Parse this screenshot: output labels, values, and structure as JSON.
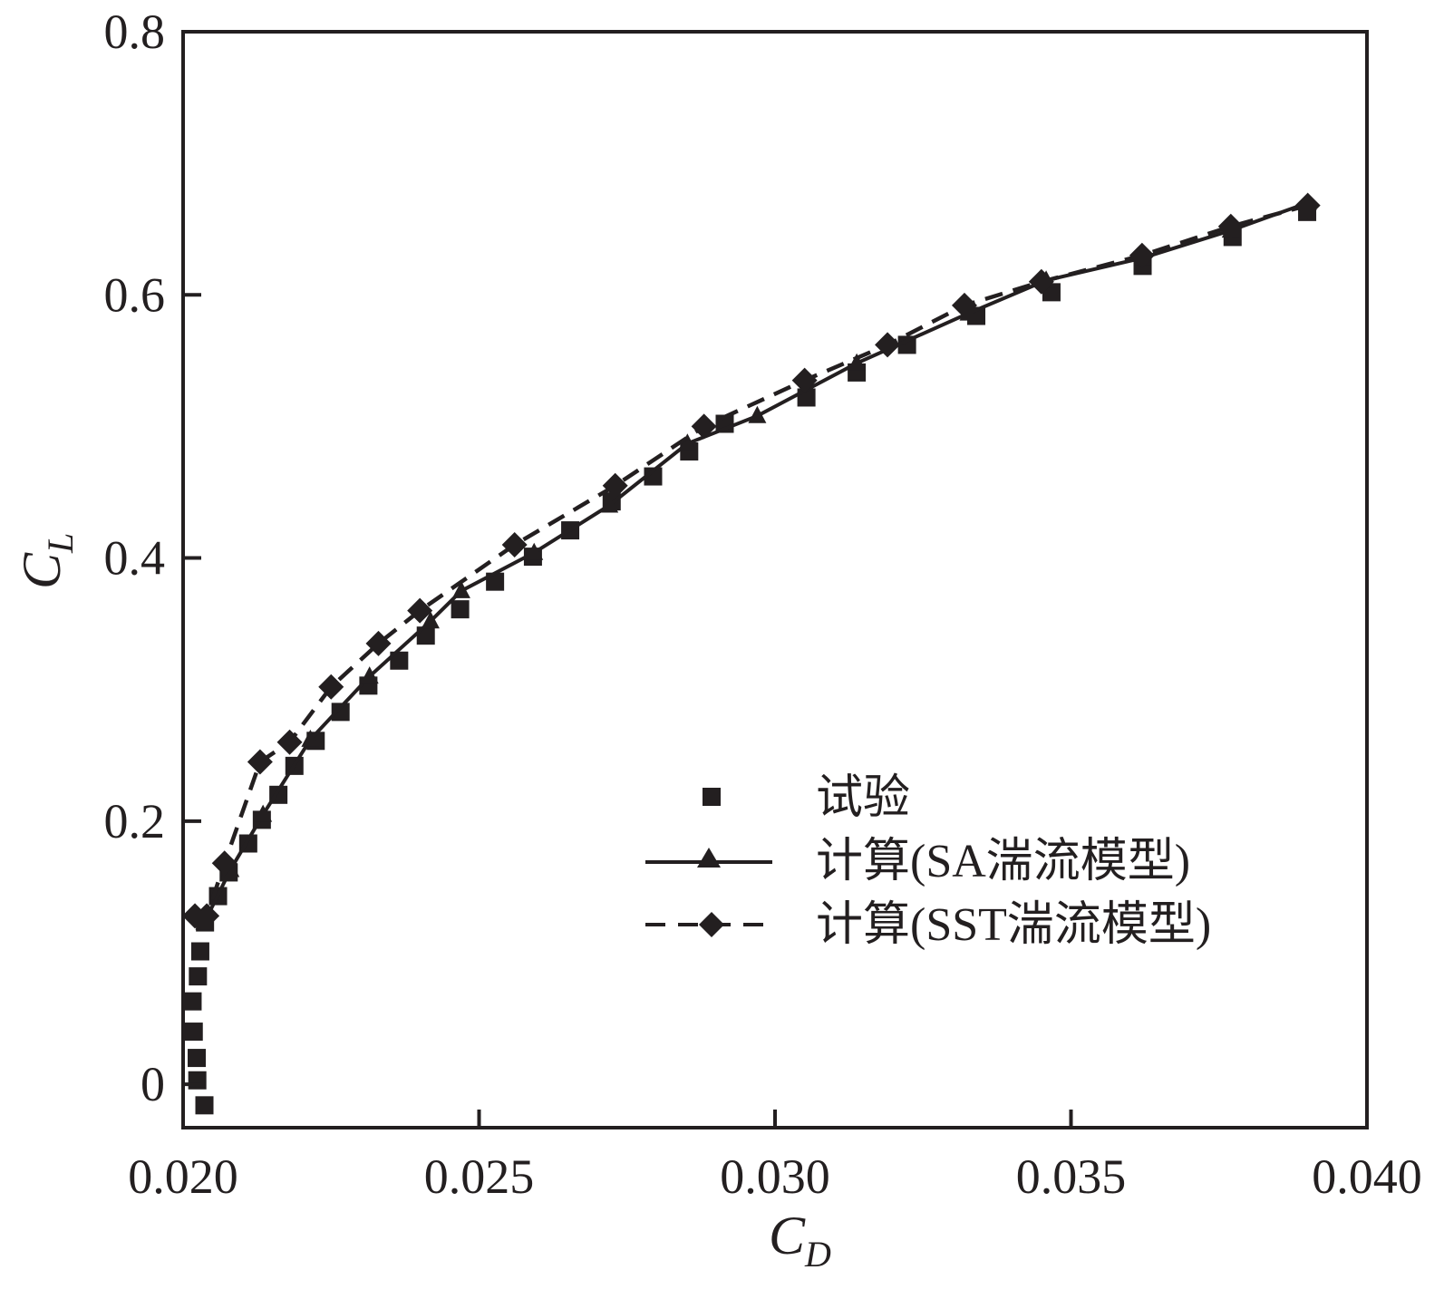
{
  "chart_data": {
    "type": "line",
    "title": "",
    "xlabel": {
      "main": "C",
      "sub": "D"
    },
    "ylabel": {
      "main": "C",
      "sub": "L"
    },
    "xlim": [
      0.02,
      0.04
    ],
    "ylim": [
      -0.033,
      0.8
    ],
    "xticks": [
      0.02,
      0.025,
      0.03,
      0.035,
      0.04
    ],
    "xtick_labels": [
      "0.020",
      "0.025",
      "0.030",
      "0.035",
      "0.040"
    ],
    "yticks": [
      0,
      0.2,
      0.4,
      0.6,
      0.8
    ],
    "ytick_labels": [
      "0",
      "0.2",
      "0.4",
      "0.6",
      "0.8"
    ],
    "grid": false,
    "legend_position": "lower-right",
    "colors": {
      "ink": "#231f20",
      "background": "#ffffff"
    },
    "series": [
      {
        "name": "试验",
        "style": "markers",
        "marker": "square",
        "points": [
          {
            "x": 0.02036,
            "y": -0.016
          },
          {
            "x": 0.02024,
            "y": 0.003
          },
          {
            "x": 0.02023,
            "y": 0.02
          },
          {
            "x": 0.02018,
            "y": 0.04
          },
          {
            "x": 0.02016,
            "y": 0.063
          },
          {
            "x": 0.02025,
            "y": 0.082
          },
          {
            "x": 0.02029,
            "y": 0.101
          },
          {
            "x": 0.02037,
            "y": 0.123
          },
          {
            "x": 0.02059,
            "y": 0.143
          },
          {
            "x": 0.02077,
            "y": 0.161
          },
          {
            "x": 0.0211,
            "y": 0.183
          },
          {
            "x": 0.02133,
            "y": 0.201
          },
          {
            "x": 0.02161,
            "y": 0.22
          },
          {
            "x": 0.02188,
            "y": 0.242
          },
          {
            "x": 0.02224,
            "y": 0.261
          },
          {
            "x": 0.02266,
            "y": 0.283
          },
          {
            "x": 0.02313,
            "y": 0.303
          },
          {
            "x": 0.02365,
            "y": 0.322
          },
          {
            "x": 0.0241,
            "y": 0.341
          },
          {
            "x": 0.02468,
            "y": 0.361
          },
          {
            "x": 0.02527,
            "y": 0.382
          },
          {
            "x": 0.02591,
            "y": 0.401
          },
          {
            "x": 0.02654,
            "y": 0.421
          },
          {
            "x": 0.02724,
            "y": 0.443
          },
          {
            "x": 0.02794,
            "y": 0.462
          },
          {
            "x": 0.02855,
            "y": 0.481
          },
          {
            "x": 0.02915,
            "y": 0.502
          },
          {
            "x": 0.03053,
            "y": 0.522
          },
          {
            "x": 0.03138,
            "y": 0.541
          },
          {
            "x": 0.03223,
            "y": 0.562
          },
          {
            "x": 0.0334,
            "y": 0.584
          },
          {
            "x": 0.03467,
            "y": 0.602
          },
          {
            "x": 0.03621,
            "y": 0.622
          },
          {
            "x": 0.03773,
            "y": 0.644
          },
          {
            "x": 0.03899,
            "y": 0.663
          }
        ]
      },
      {
        "name": "计算(SA湍流模型)",
        "style": "solid",
        "marker": "triangle",
        "points": [
          {
            "x": 0.02036,
            "y": 0.123
          },
          {
            "x": 0.0208,
            "y": 0.163
          },
          {
            "x": 0.02135,
            "y": 0.205
          },
          {
            "x": 0.02215,
            "y": 0.262
          },
          {
            "x": 0.02315,
            "y": 0.31
          },
          {
            "x": 0.02418,
            "y": 0.352
          },
          {
            "x": 0.0247,
            "y": 0.375
          },
          {
            "x": 0.02593,
            "y": 0.404
          },
          {
            "x": 0.0272,
            "y": 0.44
          },
          {
            "x": 0.02852,
            "y": 0.487
          },
          {
            "x": 0.0297,
            "y": 0.508
          },
          {
            "x": 0.03138,
            "y": 0.548
          },
          {
            "x": 0.03327,
            "y": 0.586
          },
          {
            "x": 0.03458,
            "y": 0.611
          },
          {
            "x": 0.03621,
            "y": 0.628
          },
          {
            "x": 0.0377,
            "y": 0.649
          },
          {
            "x": 0.039,
            "y": 0.67
          }
        ]
      },
      {
        "name": "计算(SST湍流模型)",
        "style": "dashed",
        "marker": "diamond",
        "points": [
          {
            "x": 0.0202,
            "y": 0.128
          },
          {
            "x": 0.0204,
            "y": 0.128
          },
          {
            "x": 0.0207,
            "y": 0.168
          },
          {
            "x": 0.0213,
            "y": 0.245
          },
          {
            "x": 0.0218,
            "y": 0.26
          },
          {
            "x": 0.0225,
            "y": 0.302
          },
          {
            "x": 0.0233,
            "y": 0.335
          },
          {
            "x": 0.024,
            "y": 0.36
          },
          {
            "x": 0.0256,
            "y": 0.41
          },
          {
            "x": 0.0273,
            "y": 0.455
          },
          {
            "x": 0.0288,
            "y": 0.5
          },
          {
            "x": 0.0305,
            "y": 0.535
          },
          {
            "x": 0.0319,
            "y": 0.562
          },
          {
            "x": 0.0332,
            "y": 0.592
          },
          {
            "x": 0.0345,
            "y": 0.61
          },
          {
            "x": 0.0362,
            "y": 0.63
          },
          {
            "x": 0.0377,
            "y": 0.652
          },
          {
            "x": 0.039,
            "y": 0.668
          }
        ]
      }
    ]
  }
}
